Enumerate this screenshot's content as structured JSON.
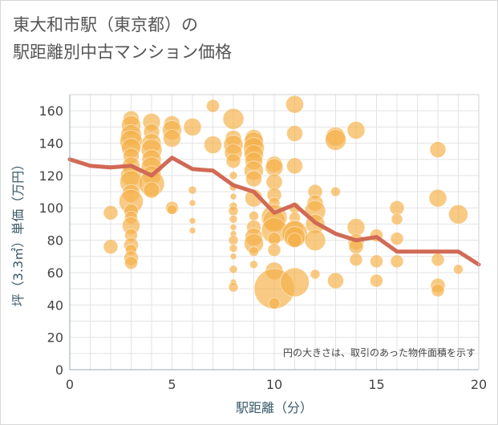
{
  "title_line1": "東大和市駅（東京都）の",
  "title_line2": "駅距離別中古マンション価格",
  "chart_data": {
    "type": "scatter",
    "xlabel": "駅距離（分）",
    "ylabel": "坪（3.3㎡）単価（万円）",
    "note": "円の大きさは、取引のあった物件面積を示す",
    "xlim": [
      0,
      20
    ],
    "ylim": [
      0,
      170
    ],
    "x_ticks": [
      "0",
      "5",
      "10",
      "15",
      "20"
    ],
    "y_ticks": [
      "0",
      "20",
      "40",
      "60",
      "80",
      "100",
      "120",
      "140",
      "160"
    ],
    "grid": true,
    "colors": {
      "bubble": "#f5b14a",
      "line": "#d16a55"
    },
    "line": {
      "x": [
        0,
        1,
        2,
        3,
        4,
        5,
        6,
        7,
        8,
        9,
        10,
        11,
        12,
        13,
        14,
        15,
        16,
        17,
        18,
        19,
        20
      ],
      "y": [
        130,
        126,
        125,
        126,
        120,
        131,
        124,
        123,
        114,
        110,
        97,
        102,
        91,
        84,
        80,
        82,
        73,
        73,
        73,
        73,
        65
      ]
    },
    "bubbles": [
      {
        "x": 2,
        "y": 97,
        "r": 9
      },
      {
        "x": 2,
        "y": 76,
        "r": 9
      },
      {
        "x": 3,
        "y": 155,
        "r": 10
      },
      {
        "x": 3,
        "y": 151,
        "r": 12
      },
      {
        "x": 3,
        "y": 145,
        "r": 13
      },
      {
        "x": 3,
        "y": 141,
        "r": 14
      },
      {
        "x": 3,
        "y": 137,
        "r": 12
      },
      {
        "x": 3,
        "y": 132,
        "r": 10
      },
      {
        "x": 3,
        "y": 126,
        "r": 11
      },
      {
        "x": 3,
        "y": 120,
        "r": 13
      },
      {
        "x": 3,
        "y": 116,
        "r": 14
      },
      {
        "x": 3,
        "y": 109,
        "r": 11
      },
      {
        "x": 3,
        "y": 104,
        "r": 15
      },
      {
        "x": 3,
        "y": 98,
        "r": 9
      },
      {
        "x": 3,
        "y": 94,
        "r": 8
      },
      {
        "x": 3,
        "y": 89,
        "r": 11
      },
      {
        "x": 3,
        "y": 83,
        "r": 8
      },
      {
        "x": 3,
        "y": 77,
        "r": 9
      },
      {
        "x": 3,
        "y": 74,
        "r": 7
      },
      {
        "x": 3,
        "y": 69,
        "r": 9
      },
      {
        "x": 3,
        "y": 66,
        "r": 8
      },
      {
        "x": 4,
        "y": 153,
        "r": 11
      },
      {
        "x": 4,
        "y": 147,
        "r": 10
      },
      {
        "x": 4,
        "y": 140,
        "r": 12
      },
      {
        "x": 4,
        "y": 136,
        "r": 13
      },
      {
        "x": 4,
        "y": 130,
        "r": 12
      },
      {
        "x": 4,
        "y": 125,
        "r": 13
      },
      {
        "x": 4,
        "y": 120,
        "r": 12
      },
      {
        "x": 4,
        "y": 115,
        "r": 16
      },
      {
        "x": 4,
        "y": 111,
        "r": 10
      },
      {
        "x": 5,
        "y": 152,
        "r": 10
      },
      {
        "x": 5,
        "y": 148,
        "r": 12
      },
      {
        "x": 5,
        "y": 143,
        "r": 11
      },
      {
        "x": 5,
        "y": 100,
        "r": 8
      },
      {
        "x": 5,
        "y": 99,
        "r": 6
      },
      {
        "x": 6,
        "y": 150,
        "r": 11
      },
      {
        "x": 6,
        "y": 111,
        "r": 5
      },
      {
        "x": 6,
        "y": 103,
        "r": 4
      },
      {
        "x": 6,
        "y": 92,
        "r": 4
      },
      {
        "x": 6,
        "y": 86,
        "r": 4
      },
      {
        "x": 7,
        "y": 163,
        "r": 8
      },
      {
        "x": 7,
        "y": 139,
        "r": 11
      },
      {
        "x": 8,
        "y": 155,
        "r": 13
      },
      {
        "x": 8,
        "y": 143,
        "r": 10
      },
      {
        "x": 8,
        "y": 139,
        "r": 12
      },
      {
        "x": 8,
        "y": 134,
        "r": 11
      },
      {
        "x": 8,
        "y": 129,
        "r": 9
      },
      {
        "x": 8,
        "y": 120,
        "r": 5
      },
      {
        "x": 8,
        "y": 113,
        "r": 5
      },
      {
        "x": 8,
        "y": 107,
        "r": 4
      },
      {
        "x": 8,
        "y": 101,
        "r": 5
      },
      {
        "x": 8,
        "y": 98,
        "r": 6
      },
      {
        "x": 8,
        "y": 93,
        "r": 5
      },
      {
        "x": 8,
        "y": 88,
        "r": 4
      },
      {
        "x": 8,
        "y": 84,
        "r": 4
      },
      {
        "x": 8,
        "y": 80,
        "r": 6
      },
      {
        "x": 8,
        "y": 75,
        "r": 5
      },
      {
        "x": 8,
        "y": 70,
        "r": 4
      },
      {
        "x": 8,
        "y": 62,
        "r": 5
      },
      {
        "x": 8,
        "y": 54,
        "r": 4
      },
      {
        "x": 8,
        "y": 51,
        "r": 6
      },
      {
        "x": 9,
        "y": 143,
        "r": 11
      },
      {
        "x": 9,
        "y": 141,
        "r": 12
      },
      {
        "x": 9,
        "y": 137,
        "r": 13
      },
      {
        "x": 9,
        "y": 133,
        "r": 12
      },
      {
        "x": 9,
        "y": 129,
        "r": 11
      },
      {
        "x": 9,
        "y": 123,
        "r": 12
      },
      {
        "x": 9,
        "y": 118,
        "r": 10
      },
      {
        "x": 9,
        "y": 106,
        "r": 11
      },
      {
        "x": 9,
        "y": 95,
        "r": 6
      },
      {
        "x": 9,
        "y": 88,
        "r": 9
      },
      {
        "x": 9,
        "y": 82,
        "r": 11
      },
      {
        "x": 9,
        "y": 78,
        "r": 12
      },
      {
        "x": 9,
        "y": 73,
        "r": 6
      },
      {
        "x": 9,
        "y": 65,
        "r": 5
      },
      {
        "x": 10,
        "y": 127,
        "r": 10
      },
      {
        "x": 10,
        "y": 125,
        "r": 11
      },
      {
        "x": 10,
        "y": 116,
        "r": 10
      },
      {
        "x": 10,
        "y": 108,
        "r": 9
      },
      {
        "x": 10,
        "y": 103,
        "r": 7
      },
      {
        "x": 10,
        "y": 94,
        "r": 16
      },
      {
        "x": 10,
        "y": 92,
        "r": 14
      },
      {
        "x": 10,
        "y": 86,
        "r": 16
      },
      {
        "x": 10,
        "y": 81,
        "r": 8
      },
      {
        "x": 10,
        "y": 74,
        "r": 8
      },
      {
        "x": 10,
        "y": 61,
        "r": 11
      },
      {
        "x": 10,
        "y": 50,
        "r": 25
      },
      {
        "x": 10,
        "y": 41,
        "r": 7
      },
      {
        "x": 11,
        "y": 164,
        "r": 11
      },
      {
        "x": 11,
        "y": 146,
        "r": 10
      },
      {
        "x": 11,
        "y": 126,
        "r": 10
      },
      {
        "x": 11,
        "y": 100,
        "r": 7
      },
      {
        "x": 11,
        "y": 94,
        "r": 7
      },
      {
        "x": 11,
        "y": 87,
        "r": 11
      },
      {
        "x": 11,
        "y": 84,
        "r": 16
      },
      {
        "x": 11,
        "y": 82,
        "r": 13
      },
      {
        "x": 11,
        "y": 80,
        "r": 9
      },
      {
        "x": 11,
        "y": 54,
        "r": 18
      },
      {
        "x": 12,
        "y": 110,
        "r": 9
      },
      {
        "x": 12,
        "y": 103,
        "r": 10
      },
      {
        "x": 12,
        "y": 98,
        "r": 13
      },
      {
        "x": 12,
        "y": 90,
        "r": 12
      },
      {
        "x": 12,
        "y": 80,
        "r": 13
      },
      {
        "x": 12,
        "y": 59,
        "r": 6
      },
      {
        "x": 13,
        "y": 144,
        "r": 12
      },
      {
        "x": 13,
        "y": 142,
        "r": 13
      },
      {
        "x": 13,
        "y": 110,
        "r": 6
      },
      {
        "x": 13,
        "y": 55,
        "r": 10
      },
      {
        "x": 14,
        "y": 148,
        "r": 11
      },
      {
        "x": 14,
        "y": 88,
        "r": 11
      },
      {
        "x": 14,
        "y": 79,
        "r": 10
      },
      {
        "x": 14,
        "y": 76,
        "r": 9
      },
      {
        "x": 14,
        "y": 68,
        "r": 8
      },
      {
        "x": 15,
        "y": 83,
        "r": 8
      },
      {
        "x": 15,
        "y": 67,
        "r": 8
      },
      {
        "x": 15,
        "y": 55,
        "r": 8
      },
      {
        "x": 16,
        "y": 100,
        "r": 9
      },
      {
        "x": 16,
        "y": 93,
        "r": 7
      },
      {
        "x": 16,
        "y": 81,
        "r": 8
      },
      {
        "x": 16,
        "y": 67,
        "r": 8
      },
      {
        "x": 18,
        "y": 136,
        "r": 10
      },
      {
        "x": 18,
        "y": 106,
        "r": 11
      },
      {
        "x": 18,
        "y": 68,
        "r": 8
      },
      {
        "x": 18,
        "y": 52,
        "r": 9
      },
      {
        "x": 18,
        "y": 49,
        "r": 8
      },
      {
        "x": 19,
        "y": 96,
        "r": 12
      },
      {
        "x": 19,
        "y": 62,
        "r": 6
      }
    ]
  }
}
